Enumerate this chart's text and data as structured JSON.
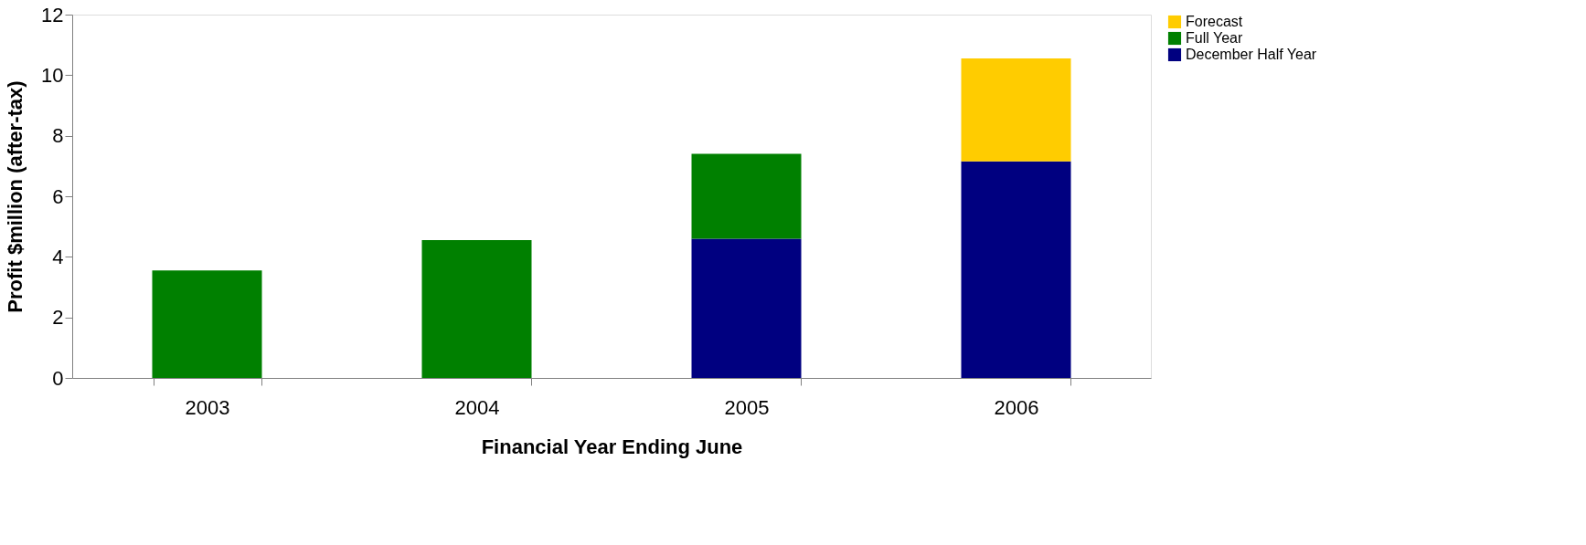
{
  "chart_data": {
    "type": "bar",
    "stacked": true,
    "xlabel": "Financial Year Ending June",
    "ylabel": "Profit $million (after-tax)",
    "categories": [
      "2003",
      "2004",
      "2005",
      "2006"
    ],
    "series": [
      {
        "name": "December Half Year",
        "color": "#000080",
        "values": [
          null,
          null,
          4.6,
          7.15
        ]
      },
      {
        "name": "Full Year",
        "color": "#008000",
        "values": [
          3.55,
          4.55,
          2.8,
          null
        ]
      },
      {
        "name": "Forecast",
        "color": "#ffcc00",
        "values": [
          null,
          null,
          null,
          3.4
        ]
      }
    ],
    "ylim": [
      0,
      12
    ],
    "yticks": [
      0,
      2,
      4,
      6,
      8,
      10,
      12
    ],
    "grid": false,
    "legend": "right"
  }
}
